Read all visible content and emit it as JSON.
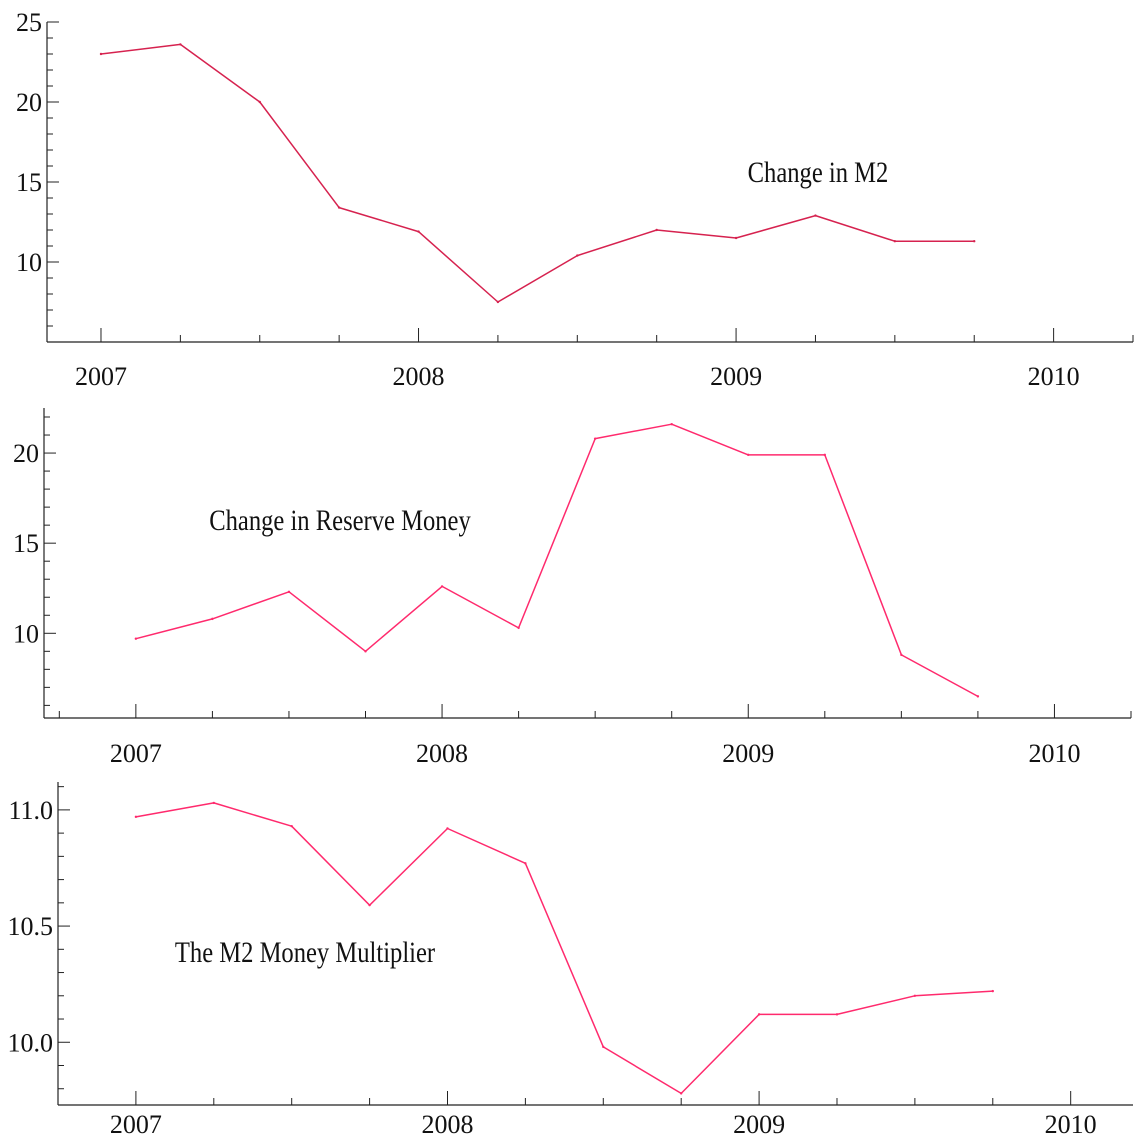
{
  "chart_data": [
    {
      "type": "line",
      "title": "",
      "xlabel": "",
      "ylabel": "",
      "annotation": "Change in M2",
      "x_ticks": [
        2007,
        2008,
        2009,
        2010
      ],
      "y_ticks": [
        10,
        15,
        20,
        25
      ],
      "xlim": [
        2006.83,
        2010.25
      ],
      "ylim": [
        5,
        25
      ],
      "grid": false,
      "line_color": "#d6224f",
      "x": [
        2007.0,
        2007.25,
        2007.5,
        2007.75,
        2008.0,
        2008.25,
        2008.5,
        2008.75,
        2009.0,
        2009.25,
        2009.5,
        2009.75
      ],
      "values": [
        23.0,
        23.6,
        20.0,
        13.4,
        11.9,
        7.5,
        10.4,
        12.0,
        11.5,
        12.9,
        11.3,
        11.3
      ]
    },
    {
      "type": "line",
      "title": "",
      "xlabel": "",
      "ylabel": "",
      "annotation": "Change in Reserve Money",
      "x_ticks": [
        2007,
        2008,
        2009,
        2010
      ],
      "y_ticks": [
        10,
        15,
        20
      ],
      "xlim": [
        2006.7,
        2010.25
      ],
      "ylim": [
        5.3,
        22.5
      ],
      "grid": false,
      "line_color": "#ff2a6d",
      "x": [
        2007.0,
        2007.25,
        2007.5,
        2007.75,
        2008.0,
        2008.25,
        2008.5,
        2008.75,
        2009.0,
        2009.25,
        2009.5,
        2009.75
      ],
      "values": [
        9.7,
        10.8,
        12.3,
        9.0,
        12.6,
        10.3,
        20.8,
        21.6,
        19.9,
        19.9,
        8.8,
        6.5
      ]
    },
    {
      "type": "line",
      "title": "",
      "xlabel": "",
      "ylabel": "",
      "annotation": "The M2 Money Multiplier",
      "x_ticks": [
        2007,
        2008,
        2009,
        2010
      ],
      "y_ticks": [
        10.0,
        10.5,
        11.0
      ],
      "xlim": [
        2006.75,
        2010.2
      ],
      "ylim": [
        9.73,
        11.12
      ],
      "grid": false,
      "line_color": "#ff2a6d",
      "x": [
        2007.0,
        2007.25,
        2007.5,
        2007.75,
        2008.0,
        2008.25,
        2008.5,
        2008.75,
        2009.0,
        2009.25,
        2009.5,
        2009.75
      ],
      "values": [
        10.97,
        11.03,
        10.93,
        10.59,
        10.92,
        10.77,
        9.98,
        9.78,
        10.12,
        10.12,
        10.2,
        10.22
      ]
    }
  ]
}
